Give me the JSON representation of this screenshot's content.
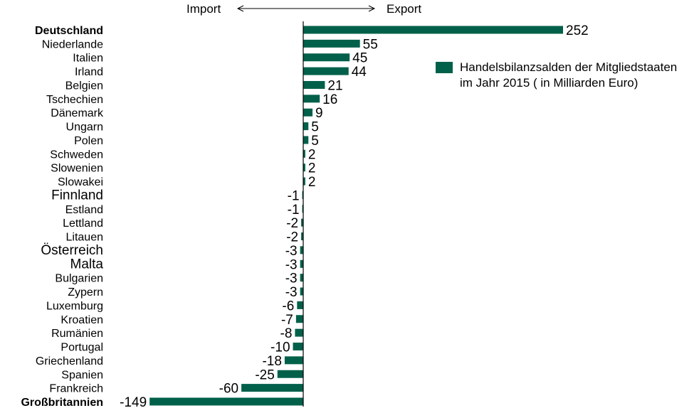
{
  "header": {
    "import_label": "Import",
    "export_label": "Export"
  },
  "legend": {
    "line1": "Handelsbilanzsalden der Mitgliedstaaten",
    "line2": "im Jahr 2015 ( in Milliarden Euro)"
  },
  "colors": {
    "bar": "#00604a",
    "axis": "#000000",
    "text": "#000000"
  },
  "chart_data": {
    "type": "bar",
    "orientation": "horizontal",
    "title": "",
    "xlabel": "",
    "ylabel": "",
    "legend_position": "right",
    "grid": false,
    "xlim": [
      -149,
      252
    ],
    "categories": [
      "Deutschland",
      "Niederlande",
      "Italien",
      "Irland",
      "Belgien",
      "Tschechien",
      "Dänemark",
      "Ungarn",
      "Polen",
      "Schweden",
      "Slowenien",
      "Slowakei",
      "Finnland",
      "Estland",
      "Lettland",
      "Litauen",
      "Österreich",
      "Malta",
      "Bulgarien",
      "Zypern",
      "Luxemburg",
      "Kroatien",
      "Rumänien",
      "Portugal",
      "Griechenland",
      "Spanien",
      "Frankreich",
      "Großbritannien"
    ],
    "series": [
      {
        "name": "Handelsbilanzsalden der Mitgliedstaaten im Jahr 2015 ( in Milliarden Euro)",
        "values": [
          252,
          55,
          45,
          44,
          21,
          16,
          9,
          5,
          5,
          2,
          2,
          2,
          -1,
          -1,
          -2,
          -2,
          -3,
          -3,
          -3,
          -3,
          -6,
          -7,
          -8,
          -10,
          -18,
          -25,
          -60,
          -149
        ]
      }
    ],
    "bold_categories": [
      "Deutschland",
      "Großbritannien"
    ],
    "large_categories": [
      "Finnland",
      "Österreich",
      "Malta"
    ]
  }
}
